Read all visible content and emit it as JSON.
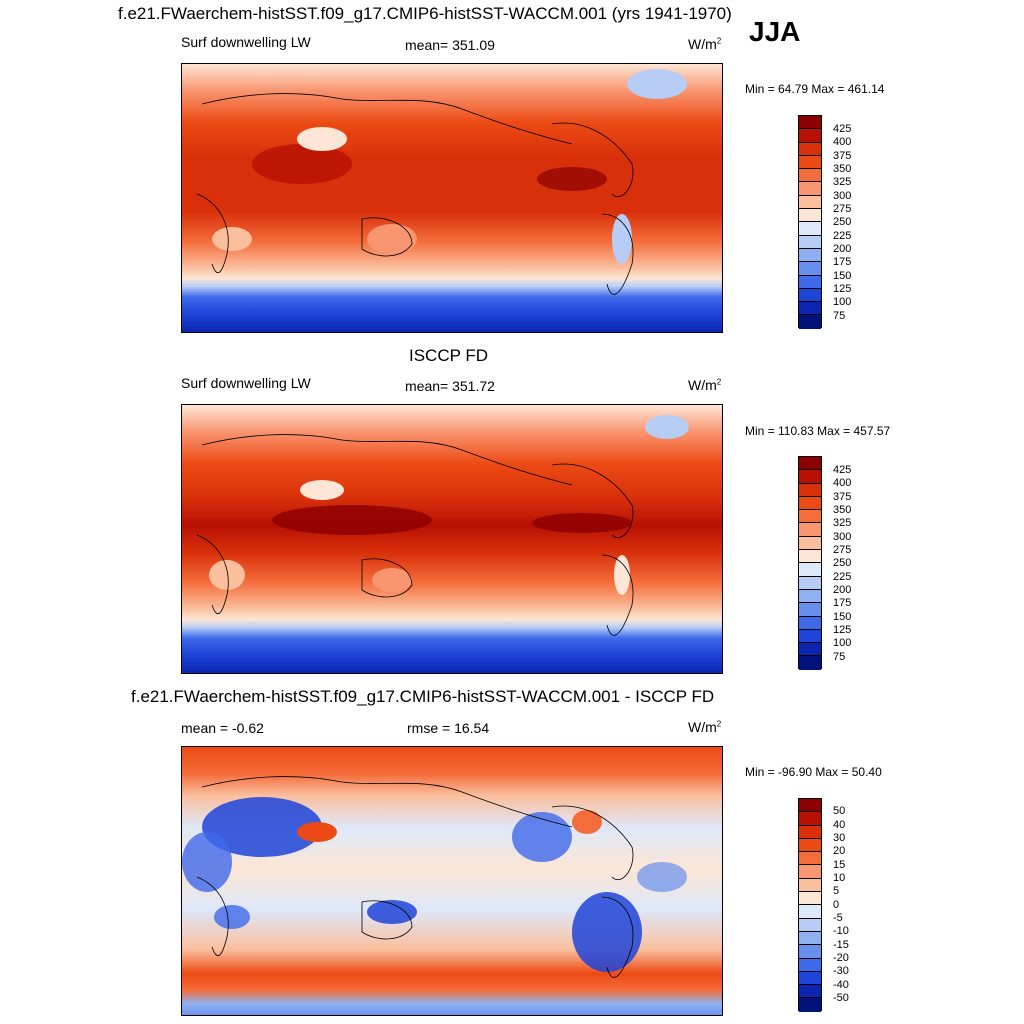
{
  "title": "f.e21.FWaerchem-histSST.f09_g17.CMIP6-histSST-WACCM.001 (yrs 1941-1970)",
  "season": "JJA",
  "panels": [
    {
      "id": "model",
      "heading": "",
      "left_label": "Surf downwelling LW",
      "center_label": "mean= 351.09",
      "unit": "W/m",
      "unit_sup": "2",
      "minmax": "Min =  64.79 Max = 461.14",
      "levels": [
        "425",
        "400",
        "375",
        "350",
        "325",
        "300",
        "275",
        "250",
        "225",
        "200",
        "175",
        "150",
        "125",
        "100",
        "75"
      ]
    },
    {
      "id": "obs",
      "heading": "ISCCP FD",
      "left_label": "Surf downwelling LW",
      "center_label": "mean= 351.72",
      "unit": "W/m",
      "unit_sup": "2",
      "minmax": "Min = 110.83 Max = 457.57",
      "levels": [
        "425",
        "400",
        "375",
        "350",
        "325",
        "300",
        "275",
        "250",
        "225",
        "200",
        "175",
        "150",
        "125",
        "100",
        "75"
      ]
    },
    {
      "id": "diff",
      "heading": "f.e21.FWaerchem-histSST.f09_g17.CMIP6-histSST-WACCM.001 - ISCCP FD",
      "left_label": "mean =  -0.62",
      "center_label": "rmse =  16.54",
      "unit": "W/m",
      "unit_sup": "2",
      "minmax": "Min = -96.90 Max =  50.40",
      "levels": [
        "50",
        "40",
        "30",
        "20",
        "15",
        "10",
        "5",
        "0",
        "-5",
        "-10",
        "-15",
        "-20",
        "-30",
        "-40",
        "-50"
      ]
    }
  ],
  "colors": {
    "abs_scale": [
      "#8b0000",
      "#b81004",
      "#d8300a",
      "#ec4a14",
      "#f46c3a",
      "#f99570",
      "#fbbf9e",
      "#fde6d5",
      "#dde8fa",
      "#b7cdf5",
      "#8fb0f0",
      "#6790ee",
      "#3e69ea",
      "#1e44d8",
      "#0b25b0",
      "#00137a"
    ],
    "diff_scale": [
      "#8b0000",
      "#b81004",
      "#d8300a",
      "#ec4a14",
      "#f46c3a",
      "#f99570",
      "#fbbf9e",
      "#fde6d5",
      "#dde8fa",
      "#b7cdf5",
      "#8fb0f0",
      "#6790ee",
      "#3e69ea",
      "#1e44d8",
      "#0b25b0",
      "#00137a"
    ]
  }
}
